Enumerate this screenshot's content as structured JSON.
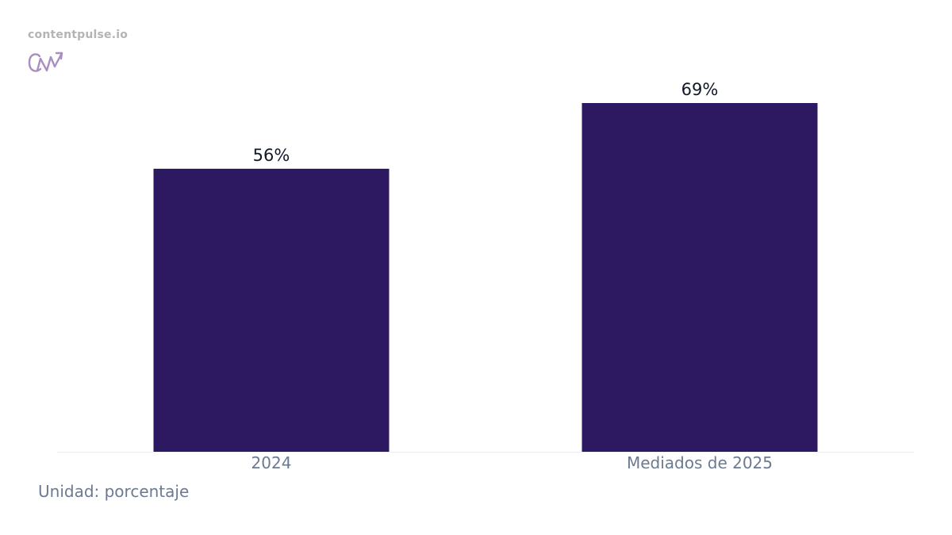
{
  "brand": {
    "site": "contentpulse.io",
    "logo_icon": "cn-growth-arrow-logo-icon",
    "logo_color": "#a98fc1"
  },
  "chart_data": {
    "type": "bar",
    "categories": [
      "2024",
      "Mediados de 2025"
    ],
    "values": [
      56,
      69
    ],
    "value_labels": [
      "56%",
      "69%"
    ],
    "ylim": [
      0,
      69
    ],
    "grid": false,
    "bar_color": "#2d1862",
    "value_label_color": "#111827",
    "tick_label_color": "#6b7a90"
  },
  "footer": {
    "unit_note": "Unidad: porcentaje"
  }
}
